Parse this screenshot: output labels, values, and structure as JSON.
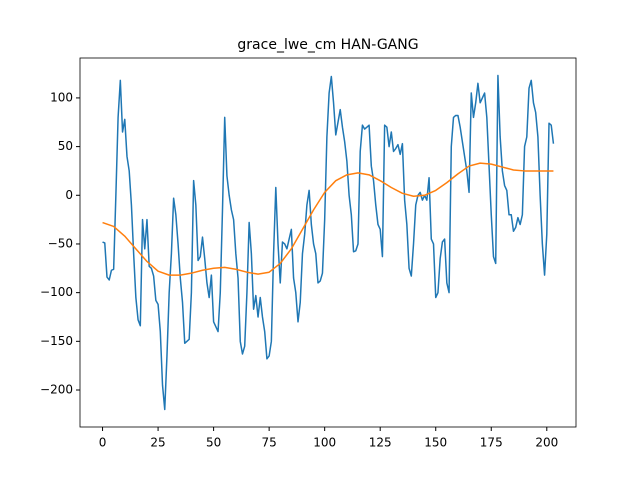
{
  "chart_data": {
    "type": "line",
    "title": "grace_lwe_cm HAN-GANG",
    "xlim": [
      -10.15,
      213.15
    ],
    "ylim": [
      -238,
      141
    ],
    "xticks": [
      0,
      25,
      50,
      75,
      100,
      125,
      150,
      175,
      200
    ],
    "yticks": [
      {
        "value": -200,
        "label": "−200"
      },
      {
        "value": -150,
        "label": "−150"
      },
      {
        "value": -100,
        "label": "−100"
      },
      {
        "value": -50,
        "label": "−50"
      },
      0,
      50,
      100
    ],
    "grid": false,
    "series": [
      {
        "color": "#1f77b4",
        "x": [
          0,
          1,
          2,
          3,
          4,
          5,
          6,
          7,
          8,
          9,
          10,
          11,
          12,
          13,
          14,
          15,
          16,
          17,
          18,
          19,
          20,
          21,
          22,
          23,
          24,
          25,
          26,
          27,
          28,
          29,
          30,
          31,
          32,
          33,
          34,
          35,
          36,
          37,
          38,
          39,
          40,
          41,
          42,
          43,
          44,
          45,
          46,
          47,
          48,
          49,
          50,
          51,
          52,
          53,
          54,
          55,
          56,
          57,
          58,
          59,
          60,
          61,
          62,
          63,
          64,
          65,
          66,
          67,
          68,
          69,
          70,
          71,
          72,
          73,
          74,
          75,
          76,
          77,
          78,
          79,
          80,
          81,
          82,
          83,
          84,
          85,
          86,
          87,
          88,
          89,
          90,
          91,
          92,
          93,
          94,
          95,
          96,
          97,
          98,
          99,
          100,
          101,
          102,
          103,
          104,
          105,
          106,
          107,
          108,
          109,
          110,
          111,
          112,
          113,
          114,
          115,
          116,
          117,
          118,
          119,
          120,
          121,
          122,
          123,
          124,
          125,
          126,
          127,
          128,
          129,
          130,
          131,
          132,
          133,
          134,
          135,
          136,
          137,
          138,
          139,
          140,
          141,
          142,
          143,
          144,
          145,
          146,
          147,
          148,
          149,
          150,
          151,
          152,
          153,
          154,
          155,
          156,
          157,
          158,
          159,
          160,
          161,
          162,
          163,
          164,
          165,
          166,
          167,
          168,
          169,
          170,
          171,
          172,
          173,
          174,
          175,
          176,
          177,
          178,
          179,
          180,
          181,
          182,
          183,
          184,
          185,
          186,
          187,
          188,
          189,
          190,
          191,
          192,
          193,
          194,
          195,
          196,
          197,
          198,
          199,
          200,
          201,
          202,
          203
        ],
        "values": [
          -48,
          -49,
          -84,
          -87,
          -77,
          -76,
          0,
          80,
          118,
          65,
          78,
          40,
          25,
          -10,
          -60,
          -105,
          -128,
          -134,
          -25,
          -55,
          -25,
          -73,
          -75,
          -83,
          -108,
          -112,
          -140,
          -195,
          -220,
          -165,
          -100,
          -60,
          -3,
          -20,
          -50,
          -85,
          -110,
          -152,
          -150,
          -148,
          -100,
          15,
          -10,
          -67,
          -63,
          -43,
          -65,
          -90,
          -105,
          -82,
          -130,
          -135,
          -140,
          -100,
          -15,
          80,
          20,
          0,
          -15,
          -25,
          -60,
          -85,
          -150,
          -163,
          -155,
          -100,
          -28,
          -60,
          -117,
          -103,
          -125,
          -105,
          -125,
          -140,
          -168,
          -165,
          -150,
          -60,
          8,
          -50,
          -90,
          -48,
          -50,
          -55,
          -45,
          -35,
          -85,
          -100,
          -130,
          -110,
          -60,
          -40,
          -10,
          5,
          -30,
          -50,
          -60,
          -90,
          -88,
          -80,
          -25,
          60,
          105,
          122,
          95,
          62,
          75,
          88,
          70,
          55,
          35,
          0,
          -20,
          -58,
          -57,
          -50,
          45,
          72,
          68,
          70,
          72,
          30,
          15,
          -10,
          -30,
          -35,
          -63,
          72,
          70,
          50,
          65,
          45,
          48,
          52,
          42,
          53,
          -5,
          -30,
          -75,
          -83,
          -50,
          -10,
          0,
          3,
          -5,
          0,
          -5,
          18,
          -45,
          -50,
          -105,
          -100,
          -65,
          -48,
          -45,
          -90,
          -100,
          50,
          80,
          82,
          82,
          70,
          55,
          40,
          25,
          3,
          105,
          80,
          95,
          115,
          95,
          100,
          105,
          80,
          30,
          -20,
          -63,
          -70,
          123,
          60,
          25,
          10,
          5,
          -20,
          -20,
          -37,
          -33,
          -23,
          -30,
          -20,
          50,
          60,
          110,
          118,
          95,
          85,
          60,
          0,
          -50,
          -82,
          -40,
          74,
          72,
          53
        ]
      },
      {
        "color": "#ff7f0e",
        "x": [
          0,
          5,
          10,
          15,
          20,
          25,
          30,
          35,
          40,
          45,
          50,
          55,
          60,
          65,
          70,
          75,
          80,
          85,
          90,
          95,
          100,
          105,
          110,
          115,
          120,
          125,
          130,
          135,
          140,
          145,
          150,
          155,
          160,
          165,
          170,
          175,
          180,
          185,
          190,
          195,
          200,
          203
        ],
        "values": [
          -28,
          -32,
          -42,
          -55,
          -68,
          -78,
          -82,
          -82,
          -80,
          -77,
          -75,
          -74,
          -76,
          -79,
          -81,
          -79,
          -70,
          -55,
          -35,
          -15,
          3,
          15,
          21,
          23,
          21,
          15,
          8,
          2,
          -1,
          0,
          5,
          13,
          22,
          30,
          33,
          32,
          29,
          26,
          25,
          25,
          25,
          25
        ]
      }
    ]
  }
}
